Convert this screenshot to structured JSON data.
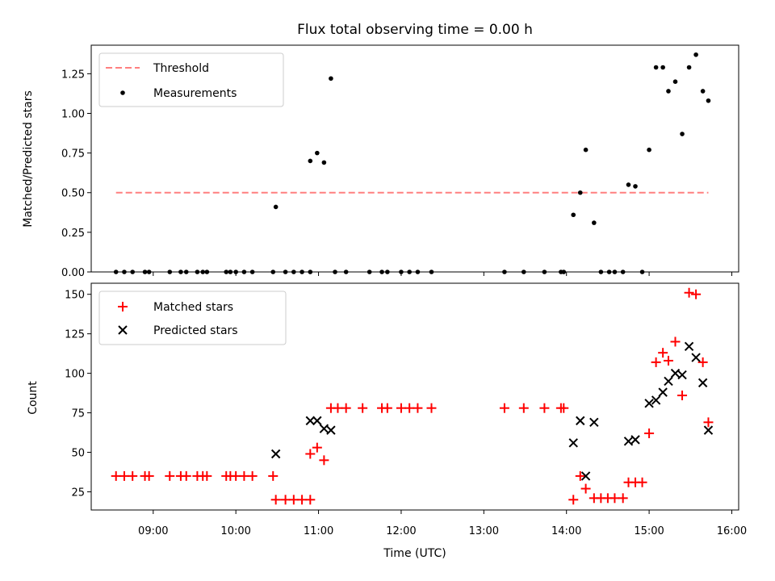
{
  "chart_data": [
    {
      "type": "scatter",
      "title": "Flux total observing time = 0.00 h",
      "xlabel": "",
      "ylabel": "Matched/Predicted stars",
      "xlim": [
        "08:15",
        "16:05"
      ],
      "ylim": [
        0,
        1.43
      ],
      "yticks": [
        "0.00",
        "0.25",
        "0.50",
        "0.75",
        "1.00",
        "1.25"
      ],
      "grid": false,
      "legend_position": "top-left",
      "series": [
        {
          "name": "Threshold",
          "kind": "line",
          "style": "dashed",
          "color": "#ff7f7f",
          "points": [
            [
              "08:33",
              0.5
            ],
            [
              "15:43",
              0.5
            ]
          ]
        },
        {
          "name": "Measurements",
          "kind": "scatter",
          "marker": "dot",
          "color": "#000000",
          "points": [
            [
              "08:33",
              0
            ],
            [
              "08:39",
              0
            ],
            [
              "08:45",
              0
            ],
            [
              "08:54",
              0
            ],
            [
              "08:57",
              0
            ],
            [
              "09:12",
              0
            ],
            [
              "09:20",
              0
            ],
            [
              "09:24",
              0
            ],
            [
              "09:32",
              0
            ],
            [
              "09:36",
              0
            ],
            [
              "09:39",
              0
            ],
            [
              "09:53",
              0
            ],
            [
              "09:56",
              0
            ],
            [
              "10:00",
              0
            ],
            [
              "10:06",
              0
            ],
            [
              "10:12",
              0
            ],
            [
              "10:27",
              0
            ],
            [
              "10:29",
              0.41
            ],
            [
              "10:36",
              0
            ],
            [
              "10:42",
              0
            ],
            [
              "10:48",
              0
            ],
            [
              "10:54",
              0
            ],
            [
              "10:54",
              0.7
            ],
            [
              "10:59",
              0.75
            ],
            [
              "11:04",
              0.69
            ],
            [
              "11:09",
              1.22
            ],
            [
              "11:12",
              0
            ],
            [
              "11:20",
              0
            ],
            [
              "11:37",
              0
            ],
            [
              "11:46",
              0
            ],
            [
              "11:50",
              0
            ],
            [
              "12:00",
              0
            ],
            [
              "12:06",
              0
            ],
            [
              "12:12",
              0
            ],
            [
              "12:22",
              0
            ],
            [
              "13:15",
              0
            ],
            [
              "13:29",
              0
            ],
            [
              "13:44",
              0
            ],
            [
              "13:56",
              0
            ],
            [
              "13:58",
              0
            ],
            [
              "14:05",
              0.36
            ],
            [
              "14:10",
              0.5
            ],
            [
              "14:14",
              0.77
            ],
            [
              "14:20",
              0.31
            ],
            [
              "14:25",
              0
            ],
            [
              "14:31",
              0
            ],
            [
              "14:35",
              0
            ],
            [
              "14:41",
              0
            ],
            [
              "14:45",
              0.55
            ],
            [
              "14:50",
              0.54
            ],
            [
              "14:55",
              0
            ],
            [
              "15:00",
              0.77
            ],
            [
              "15:05",
              1.29
            ],
            [
              "15:10",
              1.29
            ],
            [
              "15:14",
              1.14
            ],
            [
              "15:19",
              1.2
            ],
            [
              "15:24",
              0.87
            ],
            [
              "15:29",
              1.29
            ],
            [
              "15:34",
              1.37
            ],
            [
              "15:39",
              1.14
            ],
            [
              "15:43",
              1.08
            ]
          ]
        }
      ]
    },
    {
      "type": "scatter",
      "title": "",
      "xlabel": "Time (UTC)",
      "ylabel": "Count",
      "xlim": [
        "08:15",
        "16:05"
      ],
      "ylim": [
        13.5,
        157
      ],
      "yticks": [
        "25",
        "50",
        "75",
        "100",
        "125",
        "150"
      ],
      "xticks": [
        "09:00",
        "10:00",
        "11:00",
        "12:00",
        "13:00",
        "14:00",
        "15:00",
        "16:00"
      ],
      "grid": false,
      "legend_position": "top-left",
      "series": [
        {
          "name": "Matched stars",
          "kind": "scatter",
          "marker": "plus",
          "color": "#ff0000",
          "points": [
            [
              "08:33",
              35
            ],
            [
              "08:39",
              35
            ],
            [
              "08:45",
              35
            ],
            [
              "08:54",
              35
            ],
            [
              "08:57",
              35
            ],
            [
              "09:12",
              35
            ],
            [
              "09:20",
              35
            ],
            [
              "09:24",
              35
            ],
            [
              "09:32",
              35
            ],
            [
              "09:36",
              35
            ],
            [
              "09:39",
              35
            ],
            [
              "09:53",
              35
            ],
            [
              "09:56",
              35
            ],
            [
              "10:00",
              35
            ],
            [
              "10:06",
              35
            ],
            [
              "10:12",
              35
            ],
            [
              "10:27",
              35
            ],
            [
              "10:29",
              20
            ],
            [
              "10:36",
              20
            ],
            [
              "10:42",
              20
            ],
            [
              "10:48",
              20
            ],
            [
              "10:54",
              20
            ],
            [
              "10:54",
              49
            ],
            [
              "10:59",
              53
            ],
            [
              "11:04",
              45
            ],
            [
              "11:09",
              78
            ],
            [
              "11:14",
              78
            ],
            [
              "11:20",
              78
            ],
            [
              "11:32",
              78
            ],
            [
              "11:46",
              78
            ],
            [
              "11:50",
              78
            ],
            [
              "12:00",
              78
            ],
            [
              "12:06",
              78
            ],
            [
              "12:12",
              78
            ],
            [
              "12:22",
              78
            ],
            [
              "13:15",
              78
            ],
            [
              "13:29",
              78
            ],
            [
              "13:44",
              78
            ],
            [
              "13:56",
              78
            ],
            [
              "13:58",
              78
            ],
            [
              "14:05",
              20
            ],
            [
              "14:10",
              35
            ],
            [
              "14:14",
              27
            ],
            [
              "14:20",
              21
            ],
            [
              "14:25",
              21
            ],
            [
              "14:30",
              21
            ],
            [
              "14:35",
              21
            ],
            [
              "14:41",
              21
            ],
            [
              "14:45",
              31
            ],
            [
              "14:50",
              31
            ],
            [
              "14:55",
              31
            ],
            [
              "15:00",
              62
            ],
            [
              "15:05",
              107
            ],
            [
              "15:10",
              113
            ],
            [
              "15:14",
              108
            ],
            [
              "15:19",
              120
            ],
            [
              "15:24",
              86
            ],
            [
              "15:29",
              151
            ],
            [
              "15:34",
              150
            ],
            [
              "15:39",
              107
            ],
            [
              "15:43",
              69
            ]
          ]
        },
        {
          "name": "Predicted stars",
          "kind": "scatter",
          "marker": "x",
          "color": "#000000",
          "points": [
            [
              "10:29",
              49
            ],
            [
              "10:54",
              70
            ],
            [
              "10:59",
              70
            ],
            [
              "11:04",
              65
            ],
            [
              "11:09",
              64
            ],
            [
              "14:05",
              56
            ],
            [
              "14:10",
              70
            ],
            [
              "14:14",
              35
            ],
            [
              "14:20",
              69
            ],
            [
              "14:45",
              57
            ],
            [
              "14:50",
              58
            ],
            [
              "15:00",
              81
            ],
            [
              "15:05",
              83
            ],
            [
              "15:10",
              88
            ],
            [
              "15:14",
              95
            ],
            [
              "15:19",
              100
            ],
            [
              "15:24",
              99
            ],
            [
              "15:29",
              117
            ],
            [
              "15:34",
              110
            ],
            [
              "15:39",
              94
            ],
            [
              "15:43",
              64
            ]
          ]
        }
      ]
    }
  ]
}
